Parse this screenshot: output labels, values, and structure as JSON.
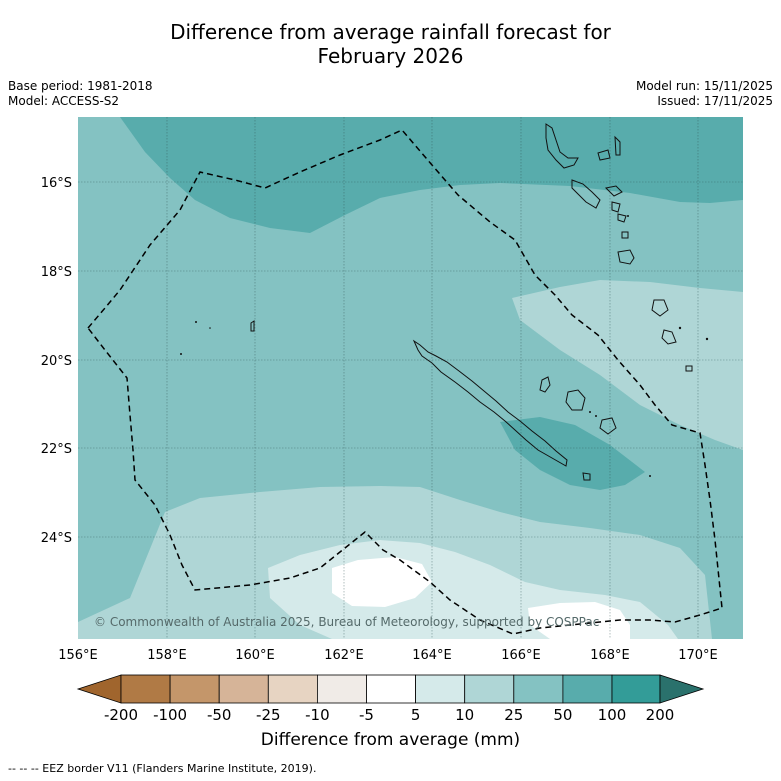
{
  "title_line1": "Difference from average rainfall forecast for",
  "title_line2": "February 2026",
  "meta_left": [
    "Base period: 1981-2018",
    "Model: ACCESS-S2"
  ],
  "meta_right": [
    "Model run: 15/11/2025",
    "Issued: 17/11/2025"
  ],
  "map": {
    "lon_ticks": [
      "156°E",
      "158°E",
      "160°E",
      "162°E",
      "164°E",
      "166°E",
      "168°E",
      "170°E"
    ],
    "lat_ticks": [
      "16°S",
      "18°S",
      "20°S",
      "22°S",
      "24°S"
    ],
    "copyright": "© Commonwealth of Australia 2025, Bureau of Meteorology, supported by COSPPac",
    "colors": {
      "level_10_25": "#afd6d6",
      "level_25_50": "#84c2c2",
      "level_50_100": "#58acac",
      "level_5_10": "#d5eaea",
      "level_m5_5": "#ffffff"
    }
  },
  "colorbar": {
    "labels": [
      "-200",
      "-100",
      "-50",
      "-25",
      "-10",
      "-5",
      "5",
      "10",
      "25",
      "50",
      "100",
      "200"
    ],
    "colors": [
      "#a0652d",
      "#b07a45",
      "#c4966a",
      "#d6b498",
      "#e7d4c2",
      "#f0ebe7",
      "#ffffff",
      "#d5eaea",
      "#afd6d6",
      "#84c2c2",
      "#58acac",
      "#339c98",
      "#2a716c"
    ],
    "title": "Difference from average (mm)"
  },
  "footer": "--  --  -- EEZ border V11 (Flanders Marine Institute, 2019)."
}
